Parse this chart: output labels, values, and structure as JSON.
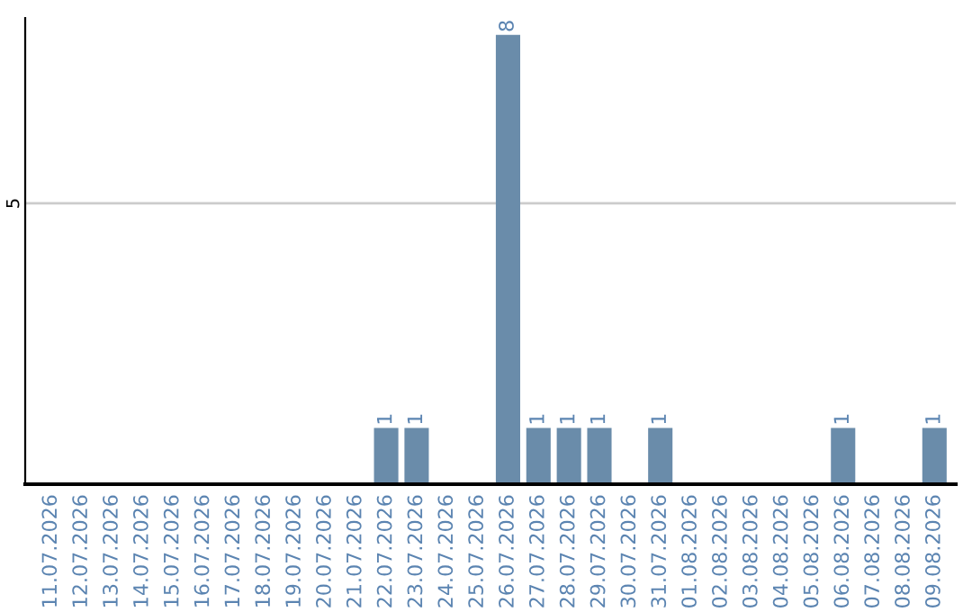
{
  "chart_data": {
    "type": "bar",
    "categories": [
      "11.07.2026",
      "12.07.2026",
      "13.07.2026",
      "14.07.2026",
      "15.07.2026",
      "16.07.2026",
      "17.07.2026",
      "18.07.2026",
      "19.07.2026",
      "20.07.2026",
      "21.07.2026",
      "22.07.2026",
      "23.07.2026",
      "24.07.2026",
      "25.07.2026",
      "26.07.2026",
      "27.07.2026",
      "28.07.2026",
      "29.07.2026",
      "30.07.2026",
      "31.07.2026",
      "01.08.2026",
      "02.08.2026",
      "03.08.2026",
      "04.08.2026",
      "05.08.2026",
      "06.08.2026",
      "07.08.2026",
      "08.08.2026",
      "09.08.2026"
    ],
    "values": [
      0,
      0,
      0,
      0,
      0,
      0,
      0,
      0,
      0,
      0,
      0,
      1,
      1,
      0,
      0,
      8,
      1,
      1,
      1,
      0,
      1,
      0,
      0,
      0,
      0,
      0,
      1,
      0,
      0,
      1
    ],
    "value_labels": [
      null,
      null,
      null,
      null,
      null,
      null,
      null,
      null,
      null,
      null,
      null,
      "1",
      "1",
      null,
      null,
      "8",
      "1",
      "1",
      "1",
      null,
      "1",
      null,
      null,
      null,
      null,
      null,
      "1",
      null,
      null,
      "1"
    ],
    "color": "#6a8caa",
    "ylim": [
      0,
      8.3
    ],
    "yticks": [
      5
    ],
    "grid": "y"
  }
}
